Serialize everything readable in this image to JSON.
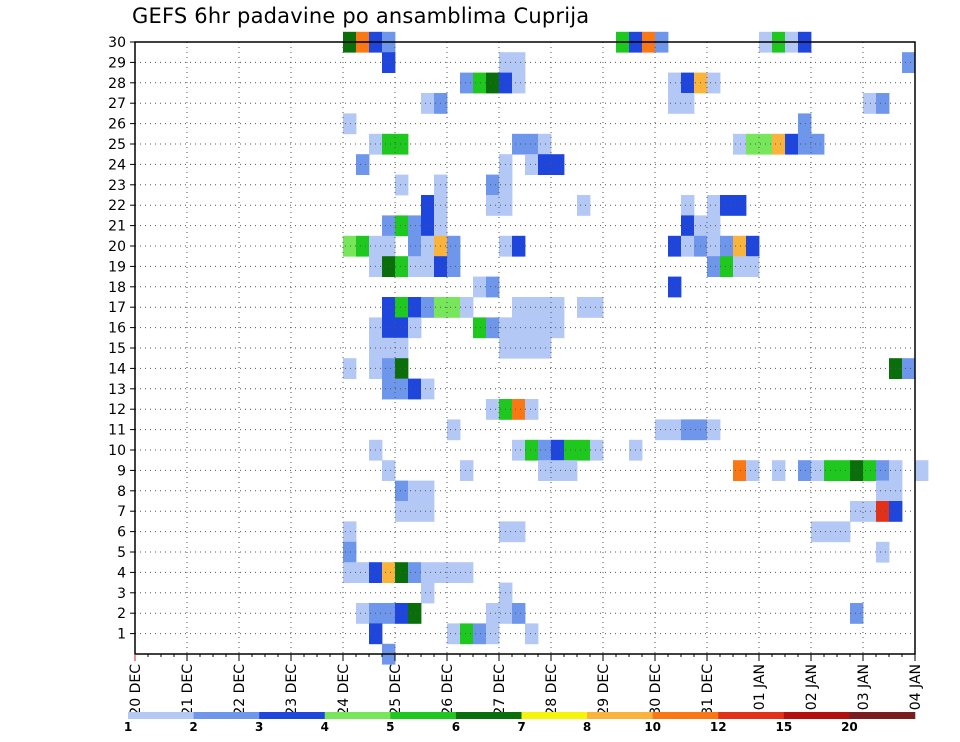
{
  "chart_data": {
    "type": "heatmap",
    "title": "GEFS 6hr padavine po ansamblima Cuprija",
    "xlabel": "",
    "ylabel": "",
    "x_tick_labels": [
      "20 DEC",
      "21 DEC",
      "22 DEC",
      "23 DEC",
      "24 DEC",
      "25 DEC",
      "26 DEC",
      "27 DEC",
      "28 DEC",
      "29 DEC",
      "30 DEC",
      "31 DEC",
      "01 JAN",
      "02 JAN",
      "03 JAN",
      "04 JAN"
    ],
    "y_tick_labels": [
      "1",
      "2",
      "3",
      "4",
      "5",
      "6",
      "7",
      "8",
      "9",
      "10",
      "11",
      "12",
      "13",
      "14",
      "15",
      "16",
      "17",
      "18",
      "19",
      "20",
      "21",
      "22",
      "23",
      "24",
      "25",
      "26",
      "27",
      "28",
      "29",
      "30"
    ],
    "time_steps_per_day": 4,
    "x_range_steps": [
      0,
      60
    ],
    "y_range": [
      0,
      30
    ],
    "grid": true,
    "legend": {
      "placement": "bottom",
      "labels": [
        "1",
        "2",
        "3",
        "4",
        "5",
        "6",
        "7",
        "8",
        "10",
        "12",
        "15",
        "20"
      ],
      "colors": [
        "#b4c8f5",
        "#6e96eb",
        "#1e46dc",
        "#78e65a",
        "#1ec81e",
        "#0a6e0a",
        "#f5f50a",
        "#fab43c",
        "#fa7814",
        "#e13219",
        "#b40f0f",
        "#781e1e"
      ]
    },
    "cells_legend": "each entry [member, time_step_index(0=20 DEC 00z, 6h steps), value_mm]",
    "cells": [
      [
        30,
        16,
        6
      ],
      [
        30,
        17,
        10
      ],
      [
        30,
        18,
        3
      ],
      [
        30,
        19,
        2
      ],
      [
        30,
        37,
        5
      ],
      [
        30,
        38,
        3
      ],
      [
        30,
        39,
        10
      ],
      [
        30,
        40,
        2
      ],
      [
        30,
        48,
        1
      ],
      [
        30,
        49,
        5
      ],
      [
        30,
        50,
        1
      ],
      [
        30,
        51,
        3
      ],
      [
        29,
        19,
        3
      ],
      [
        29,
        28,
        1
      ],
      [
        29,
        29,
        1
      ],
      [
        29,
        59,
        2
      ],
      [
        28,
        25,
        2
      ],
      [
        28,
        26,
        5
      ],
      [
        28,
        27,
        6
      ],
      [
        28,
        28,
        3
      ],
      [
        28,
        29,
        1
      ],
      [
        28,
        41,
        1
      ],
      [
        28,
        42,
        3
      ],
      [
        28,
        43,
        8
      ],
      [
        28,
        44,
        1
      ],
      [
        27,
        22,
        1
      ],
      [
        27,
        23,
        2
      ],
      [
        27,
        41,
        1
      ],
      [
        27,
        42,
        1
      ],
      [
        27,
        56,
        1
      ],
      [
        27,
        57,
        2
      ],
      [
        26,
        16,
        1
      ],
      [
        26,
        51,
        2
      ],
      [
        25,
        18,
        1
      ],
      [
        25,
        19,
        5
      ],
      [
        25,
        20,
        5
      ],
      [
        25,
        29,
        2
      ],
      [
        25,
        30,
        2
      ],
      [
        25,
        31,
        1
      ],
      [
        25,
        46,
        1
      ],
      [
        25,
        47,
        4
      ],
      [
        25,
        48,
        4
      ],
      [
        25,
        49,
        8
      ],
      [
        25,
        50,
        3
      ],
      [
        25,
        51,
        2
      ],
      [
        25,
        52,
        2
      ],
      [
        24,
        17,
        2
      ],
      [
        24,
        28,
        1
      ],
      [
        24,
        30,
        1
      ],
      [
        24,
        31,
        3
      ],
      [
        24,
        32,
        3
      ],
      [
        23,
        20,
        1
      ],
      [
        23,
        23,
        1
      ],
      [
        23,
        27,
        2
      ],
      [
        23,
        28,
        1
      ],
      [
        22,
        22,
        3
      ],
      [
        22,
        23,
        1
      ],
      [
        22,
        27,
        1
      ],
      [
        22,
        28,
        1
      ],
      [
        22,
        34,
        1
      ],
      [
        22,
        42,
        1
      ],
      [
        22,
        44,
        1
      ],
      [
        22,
        45,
        3
      ],
      [
        22,
        46,
        3
      ],
      [
        21,
        19,
        2
      ],
      [
        21,
        20,
        5
      ],
      [
        21,
        21,
        2
      ],
      [
        21,
        22,
        3
      ],
      [
        21,
        23,
        1
      ],
      [
        21,
        42,
        3
      ],
      [
        21,
        43,
        1
      ],
      [
        21,
        44,
        1
      ],
      [
        20,
        16,
        4
      ],
      [
        20,
        17,
        5
      ],
      [
        20,
        18,
        1
      ],
      [
        20,
        19,
        1
      ],
      [
        20,
        21,
        2
      ],
      [
        20,
        22,
        1
      ],
      [
        20,
        23,
        8
      ],
      [
        20,
        24,
        2
      ],
      [
        20,
        28,
        1
      ],
      [
        20,
        29,
        3
      ],
      [
        20,
        41,
        3
      ],
      [
        20,
        42,
        1
      ],
      [
        20,
        43,
        2
      ],
      [
        20,
        44,
        1
      ],
      [
        20,
        45,
        2
      ],
      [
        20,
        46,
        8
      ],
      [
        20,
        47,
        3
      ],
      [
        19,
        18,
        1
      ],
      [
        19,
        19,
        6
      ],
      [
        19,
        20,
        5
      ],
      [
        19,
        21,
        1
      ],
      [
        19,
        22,
        1
      ],
      [
        19,
        23,
        3
      ],
      [
        19,
        24,
        2
      ],
      [
        19,
        44,
        2
      ],
      [
        19,
        45,
        5
      ],
      [
        19,
        46,
        1
      ],
      [
        19,
        47,
        1
      ],
      [
        18,
        26,
        1
      ],
      [
        18,
        27,
        2
      ],
      [
        18,
        41,
        3
      ],
      [
        17,
        19,
        3
      ],
      [
        17,
        20,
        5
      ],
      [
        17,
        21,
        3
      ],
      [
        17,
        22,
        2
      ],
      [
        17,
        23,
        4
      ],
      [
        17,
        24,
        4
      ],
      [
        17,
        25,
        1
      ],
      [
        17,
        29,
        1
      ],
      [
        17,
        30,
        1
      ],
      [
        17,
        31,
        1
      ],
      [
        17,
        32,
        1
      ],
      [
        17,
        34,
        1
      ],
      [
        17,
        35,
        1
      ],
      [
        16,
        18,
        1
      ],
      [
        16,
        19,
        3
      ],
      [
        16,
        20,
        3
      ],
      [
        16,
        21,
        1
      ],
      [
        16,
        26,
        5
      ],
      [
        16,
        27,
        2
      ],
      [
        16,
        28,
        1
      ],
      [
        16,
        29,
        1
      ],
      [
        16,
        30,
        1
      ],
      [
        16,
        31,
        1
      ],
      [
        16,
        32,
        1
      ],
      [
        15,
        18,
        1
      ],
      [
        15,
        19,
        1
      ],
      [
        15,
        20,
        1
      ],
      [
        15,
        28,
        1
      ],
      [
        15,
        29,
        1
      ],
      [
        15,
        30,
        1
      ],
      [
        15,
        31,
        1
      ],
      [
        14,
        16,
        1
      ],
      [
        14,
        18,
        1
      ],
      [
        14,
        19,
        2
      ],
      [
        14,
        20,
        6
      ],
      [
        14,
        58,
        6
      ],
      [
        14,
        59,
        2
      ],
      [
        13,
        19,
        2
      ],
      [
        13,
        20,
        2
      ],
      [
        13,
        21,
        3
      ],
      [
        13,
        22,
        1
      ],
      [
        12,
        27,
        1
      ],
      [
        12,
        28,
        5
      ],
      [
        12,
        29,
        10
      ],
      [
        12,
        30,
        1
      ],
      [
        11,
        24,
        1
      ],
      [
        11,
        40,
        1
      ],
      [
        11,
        41,
        1
      ],
      [
        11,
        42,
        2
      ],
      [
        11,
        43,
        2
      ],
      [
        11,
        44,
        1
      ],
      [
        10,
        18,
        1
      ],
      [
        10,
        29,
        1
      ],
      [
        10,
        30,
        5
      ],
      [
        10,
        31,
        2
      ],
      [
        10,
        32,
        3
      ],
      [
        10,
        33,
        5
      ],
      [
        10,
        34,
        5
      ],
      [
        10,
        35,
        1
      ],
      [
        10,
        38,
        1
      ],
      [
        9,
        19,
        1
      ],
      [
        9,
        25,
        1
      ],
      [
        9,
        31,
        1
      ],
      [
        9,
        32,
        1
      ],
      [
        9,
        33,
        1
      ],
      [
        9,
        46,
        10
      ],
      [
        9,
        47,
        1
      ],
      [
        9,
        49,
        1
      ],
      [
        9,
        51,
        2
      ],
      [
        9,
        52,
        1
      ],
      [
        9,
        53,
        5
      ],
      [
        9,
        54,
        5
      ],
      [
        9,
        55,
        6
      ],
      [
        9,
        56,
        5
      ],
      [
        9,
        57,
        2
      ],
      [
        9,
        58,
        1
      ],
      [
        9,
        60,
        1
      ],
      [
        8,
        20,
        2
      ],
      [
        8,
        21,
        1
      ],
      [
        8,
        22,
        1
      ],
      [
        8,
        57,
        1
      ],
      [
        8,
        58,
        1
      ],
      [
        7,
        20,
        1
      ],
      [
        7,
        21,
        1
      ],
      [
        7,
        22,
        1
      ],
      [
        7,
        55,
        1
      ],
      [
        7,
        56,
        1
      ],
      [
        7,
        57,
        12
      ],
      [
        7,
        58,
        3
      ],
      [
        6,
        16,
        1
      ],
      [
        6,
        28,
        1
      ],
      [
        6,
        29,
        1
      ],
      [
        6,
        52,
        1
      ],
      [
        6,
        53,
        1
      ],
      [
        6,
        54,
        1
      ],
      [
        5,
        16,
        2
      ],
      [
        5,
        57,
        1
      ],
      [
        4,
        16,
        1
      ],
      [
        4,
        17,
        1
      ],
      [
        4,
        18,
        3
      ],
      [
        4,
        19,
        8
      ],
      [
        4,
        20,
        6
      ],
      [
        4,
        21,
        2
      ],
      [
        4,
        22,
        1
      ],
      [
        4,
        23,
        1
      ],
      [
        4,
        24,
        1
      ],
      [
        4,
        25,
        1
      ],
      [
        3,
        22,
        1
      ],
      [
        3,
        28,
        1
      ],
      [
        2,
        17,
        1
      ],
      [
        2,
        18,
        2
      ],
      [
        2,
        19,
        2
      ],
      [
        2,
        20,
        3
      ],
      [
        2,
        21,
        6
      ],
      [
        2,
        27,
        1
      ],
      [
        2,
        28,
        1
      ],
      [
        2,
        29,
        2
      ],
      [
        2,
        55,
        2
      ],
      [
        1,
        18,
        3
      ],
      [
        1,
        24,
        1
      ],
      [
        1,
        25,
        5
      ],
      [
        1,
        26,
        2
      ],
      [
        1,
        27,
        1
      ],
      [
        1,
        30,
        1
      ],
      [
        0,
        19,
        2
      ]
    ]
  }
}
